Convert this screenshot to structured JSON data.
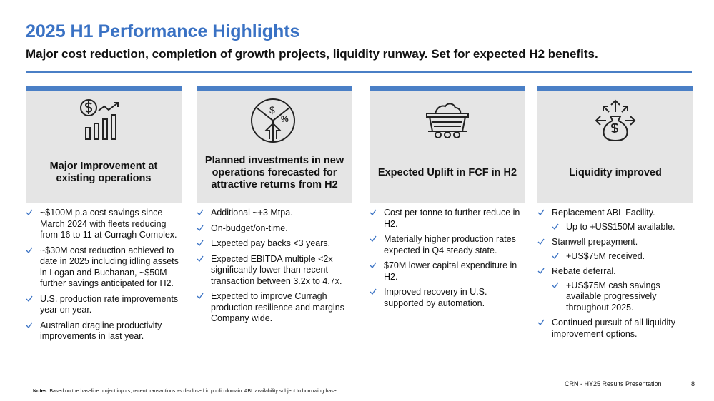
{
  "header": {
    "title": "2025 H1 Performance Highlights",
    "subtitle": "Major cost reduction, completion of growth projects, liquidity runway.  Set for expected H2 benefits."
  },
  "columns": [
    {
      "heading": "Major Improvement at existing operations",
      "items": [
        {
          "text": "~$100M p.a cost savings since March 2024 with fleets reducing from 16 to 11 at Curragh Complex."
        },
        {
          "text": "~$30M cost reduction achieved to date in 2025 including idling assets in Logan and Buchanan, ~$50M further savings anticipated for H2."
        },
        {
          "text": "U.S. production rate improvements year on year."
        },
        {
          "text": "Australian dragline productivity improvements in last year."
        }
      ]
    },
    {
      "heading": "Planned investments in new operations forecasted for attractive returns from H2",
      "items": [
        {
          "text": "Additional ~+3 Mtpa."
        },
        {
          "text": "On-budget/on-time."
        },
        {
          "text": "Expected pay backs <3 years."
        },
        {
          "text": "Expected EBITDA multiple <2x significantly lower than recent transaction between 3.2x to 4.7x."
        },
        {
          "text": "Expected to improve Curragh production resilience and margins Company wide."
        }
      ]
    },
    {
      "heading": "Expected Uplift in FCF in H2",
      "items": [
        {
          "text": "Cost per tonne to further reduce in H2."
        },
        {
          "text": "Materially higher production rates expected in Q4 steady state."
        },
        {
          "text": "$70M lower capital expenditure in H2."
        },
        {
          "text": "Improved recovery in U.S. supported by automation."
        }
      ]
    },
    {
      "heading": "Liquidity improved",
      "items": [
        {
          "text": "Replacement ABL Facility.",
          "sub": [
            "Up to +US$150M available."
          ]
        },
        {
          "text": "Stanwell prepayment.",
          "sub": [
            "+US$75M received."
          ]
        },
        {
          "text": "Rebate deferral.",
          "sub": [
            "+US$75M cash savings available progressively throughout 2025."
          ]
        },
        {
          "text": "Continued pursuit of all liquidity improvement options."
        }
      ]
    }
  ],
  "footer": {
    "source": "CRN - HY25 Results Presentation",
    "page": "8",
    "notes_label": "Notes",
    "notes_text": ": Based on the baseline project inputs,  recent transactions as disclosed in public domain.  ABL availability subject to borrowing base."
  }
}
